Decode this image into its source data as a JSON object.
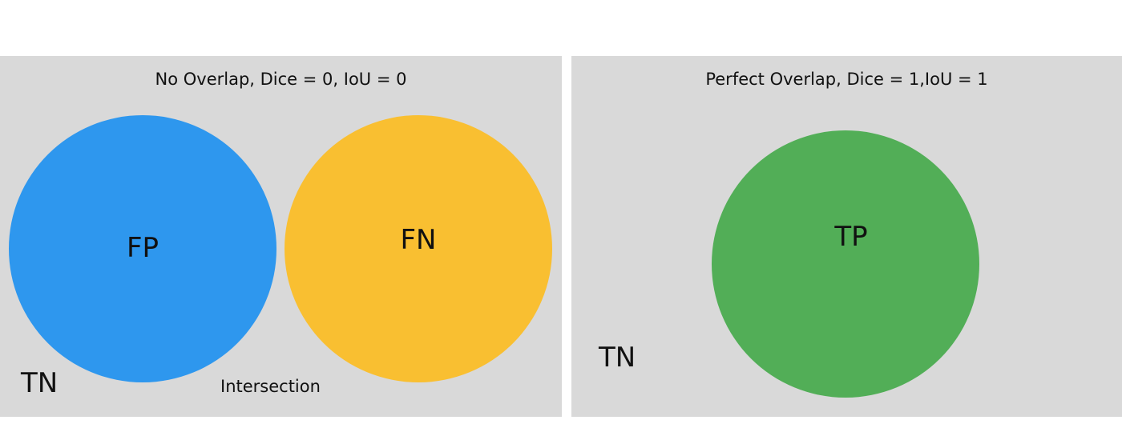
{
  "left_panel": {
    "title": "No Overlap, Dice = 0, IoU = 0",
    "fp_label": "FP",
    "fn_label": "FN",
    "tn_label": "TN",
    "intersection_label": "Intersection",
    "colors": {
      "background": "#d9d9d9",
      "fp_circle": "#2e97ee",
      "fn_circle": "#f9bf31"
    }
  },
  "right_panel": {
    "title": "Perfect Overlap, Dice = 1,IoU = 1",
    "tp_label": "TP",
    "tn_label": "TN",
    "colors": {
      "background": "#d9d9d9",
      "tp_circle": "#52ae57"
    }
  }
}
